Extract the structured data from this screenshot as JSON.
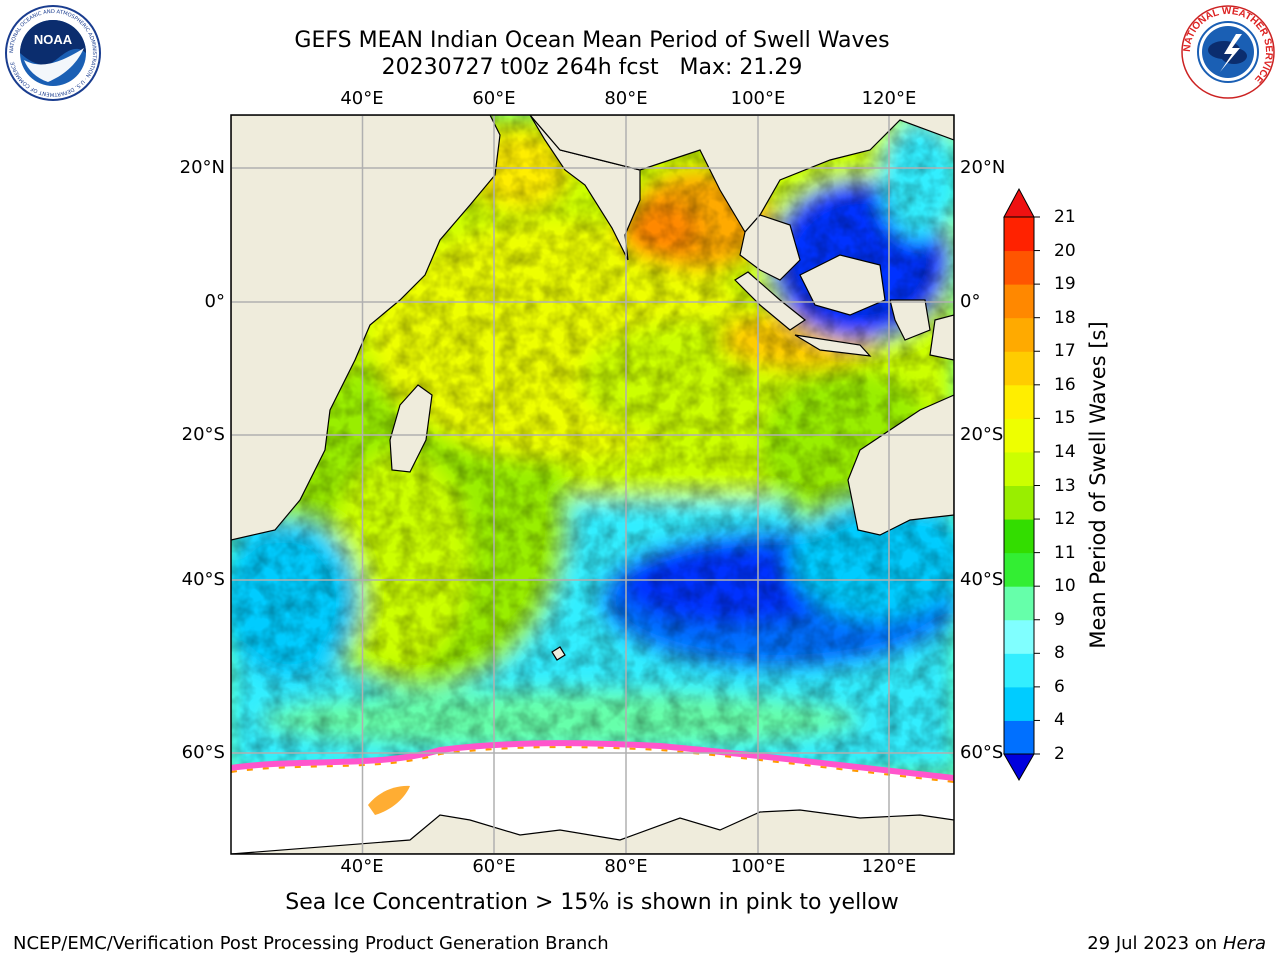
{
  "title": {
    "line1": "GEFS MEAN Indian Ocean Mean Period of Swell Waves",
    "line2": "20230727 t00z 264h fcst   Max: 21.29"
  },
  "map": {
    "lon_range": [
      20,
      130
    ],
    "lat_range": [
      -72,
      28
    ],
    "lon_ticks": [
      "40°E",
      "60°E",
      "80°E",
      "100°E",
      "120°E"
    ],
    "lat_ticks": [
      "20°N",
      "0°",
      "20°S",
      "40°S",
      "60°S"
    ],
    "gridlines": true,
    "land_color": "#efecdc",
    "sea_ice_colors": [
      "#ff55cc",
      "#ff9900",
      "#ffee00"
    ]
  },
  "colorbar": {
    "title": "Mean Period of Swell Waves [s]",
    "labels": [
      "2",
      "4",
      "6",
      "8",
      "9",
      "10",
      "11",
      "12",
      "13",
      "14",
      "15",
      "16",
      "17",
      "18",
      "19",
      "20",
      "21"
    ],
    "colors": [
      "#0033ff",
      "#0070ff",
      "#00ccff",
      "#33eeff",
      "#80ffff",
      "#66ffaa",
      "#33ee33",
      "#33dd00",
      "#99ee00",
      "#ccff00",
      "#eeff00",
      "#ffee00",
      "#ffcc00",
      "#ffaa00",
      "#ff8800",
      "#ff5500",
      "#ff2200"
    ],
    "extend_low": "#0000dd",
    "extend_high": "#ee1111"
  },
  "caption": "Sea Ice Concentration > 15% is shown in pink to yellow",
  "footer": {
    "left": "NCEP/EMC/Verification Post Processing Product Generation Branch",
    "right_date": "29 Jul 2023 on ",
    "right_host": "Hera"
  },
  "logos": {
    "noaa": "NOAA",
    "noaa_ring": "NATIONAL OCEANIC AND ATMOSPHERIC ADMINISTRATION · U.S. DEPARTMENT OF COMMERCE",
    "nws_ring": "NATIONAL WEATHER SERVICE"
  }
}
